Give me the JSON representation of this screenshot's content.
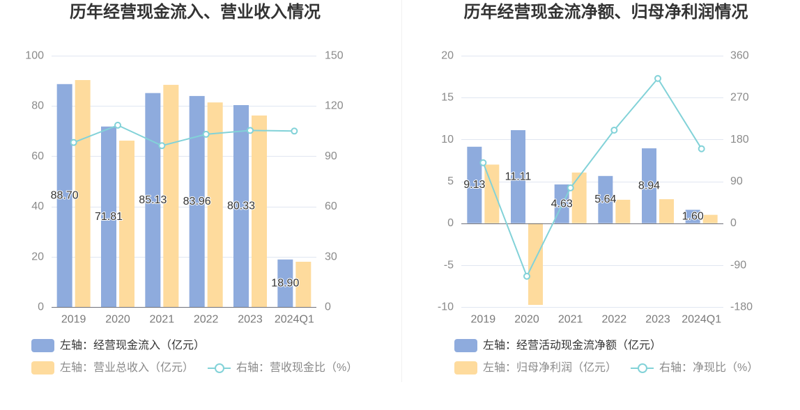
{
  "chart_data": [
    {
      "type": "bar",
      "title": "历年经营现金流入、营业收入情况",
      "categories": [
        "2019",
        "2020",
        "2021",
        "2022",
        "2023",
        "2024Q1"
      ],
      "series": [
        {
          "name": "左轴：经营现金流入（亿元）",
          "type": "bar",
          "axis": "left",
          "color": "#8eabdd",
          "values": [
            88.7,
            71.81,
            85.13,
            83.96,
            80.33,
            18.9
          ],
          "labels": [
            "88.70",
            "71.81",
            "85.13",
            "83.96",
            "80.33",
            "18.90"
          ]
        },
        {
          "name": "左轴：营业总收入（亿元）",
          "type": "bar",
          "axis": "left",
          "color": "#fedb9d",
          "values": [
            90.3,
            66.2,
            88.4,
            81.4,
            76.2,
            18.0
          ]
        },
        {
          "name": "右轴：营收现金比（%）",
          "type": "line",
          "axis": "right",
          "color": "#82d2d8",
          "values": [
            98.2,
            108.5,
            96.3,
            103.1,
            105.4,
            105.0
          ]
        }
      ],
      "ylim_left": [
        0,
        100
      ],
      "yticks_left": [
        0,
        20,
        40,
        60,
        80,
        100
      ],
      "ylim_right": [
        0,
        150
      ],
      "yticks_right": [
        0,
        30,
        60,
        90,
        120,
        150
      ],
      "grid": true,
      "legend": "bottom-left"
    },
    {
      "type": "bar",
      "title": "历年经营现金流净额、归母净利润情况",
      "categories": [
        "2019",
        "2020",
        "2021",
        "2022",
        "2023",
        "2024Q1"
      ],
      "series": [
        {
          "name": "左轴：经营活动现金流净额（亿元）",
          "type": "bar",
          "axis": "left",
          "color": "#8eabdd",
          "values": [
            9.13,
            11.11,
            4.63,
            5.64,
            8.94,
            1.6
          ],
          "labels": [
            "9.13",
            "11.11",
            "4.63",
            "5.64",
            "8.94",
            "1.60"
          ]
        },
        {
          "name": "左轴：归母净利润（亿元）",
          "type": "bar",
          "axis": "left",
          "color": "#fedb9d",
          "values": [
            7.0,
            -9.75,
            6.05,
            2.8,
            2.87,
            1.0
          ]
        },
        {
          "name": "右轴：净现比（%）",
          "type": "line",
          "axis": "right",
          "color": "#82d2d8",
          "values": [
            130,
            -114,
            76,
            200,
            311,
            160
          ]
        }
      ],
      "ylim_left": [
        -10,
        20
      ],
      "yticks_left": [
        -10,
        -5,
        0,
        5,
        10,
        15,
        20
      ],
      "ylim_right": [
        -180,
        360
      ],
      "yticks_right": [
        -180,
        -90,
        0,
        90,
        180,
        270,
        360
      ],
      "grid": true,
      "legend": "bottom-left"
    }
  ]
}
